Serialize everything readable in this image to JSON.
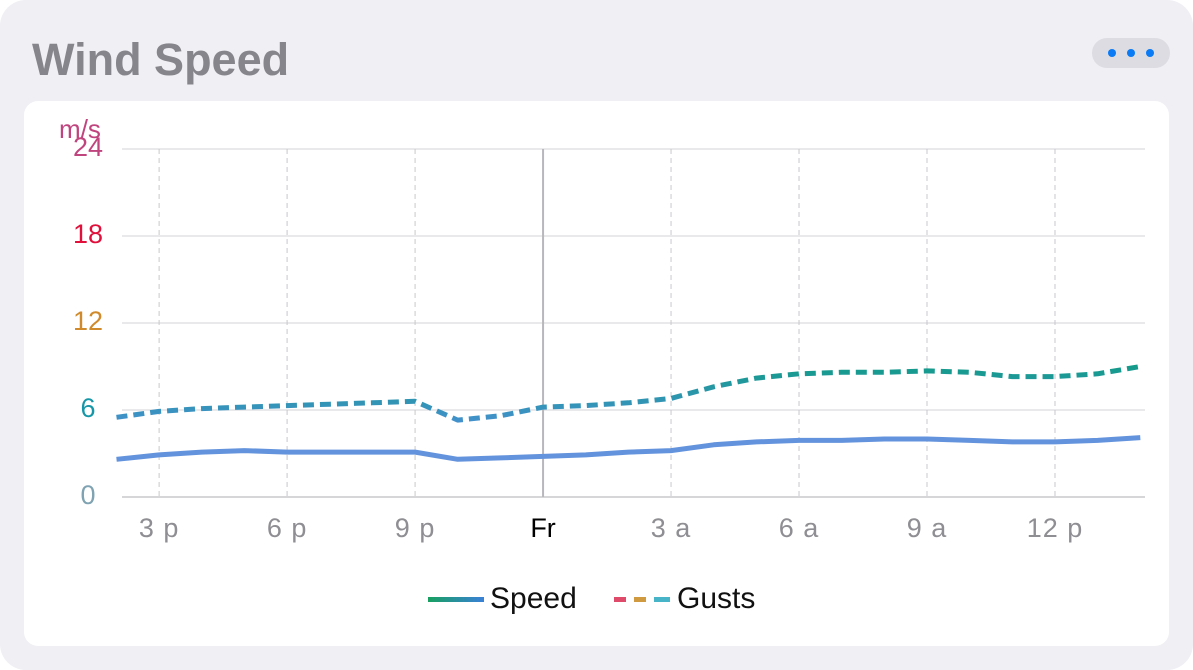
{
  "chart_data": {
    "type": "line",
    "title": "Wind Speed",
    "y_label": "m/s",
    "x": [
      14,
      15,
      16,
      17,
      18,
      19,
      20,
      21,
      22,
      23,
      24,
      25,
      26,
      27,
      28,
      29,
      30,
      31,
      32,
      33,
      34,
      35,
      36,
      37,
      38
    ],
    "series": [
      {
        "name": "Speed",
        "color": "#6393dc",
        "dashed": false,
        "values": [
          2.6,
          2.9,
          3.1,
          3.2,
          3.1,
          3.1,
          3.1,
          3.1,
          2.6,
          2.7,
          2.8,
          2.9,
          3.1,
          3.2,
          3.6,
          3.8,
          3.9,
          3.9,
          4.0,
          4.0,
          3.9,
          3.8,
          3.8,
          3.9,
          4.1
        ]
      },
      {
        "name": "Gusts",
        "color": "#16998f",
        "dashed": true,
        "values": [
          5.5,
          5.9,
          6.1,
          6.2,
          6.3,
          6.4,
          6.5,
          6.6,
          5.3,
          5.6,
          6.2,
          6.3,
          6.5,
          6.8,
          7.6,
          8.2,
          8.5,
          8.6,
          8.6,
          8.7,
          8.6,
          8.3,
          8.3,
          8.5,
          9.0
        ]
      }
    ],
    "xlim": [
      14.13,
      38.11
    ],
    "xticks": [
      {
        "value": 15,
        "label": "3 p"
      },
      {
        "value": 18,
        "label": "6 p"
      },
      {
        "value": 21,
        "label": "9 p"
      },
      {
        "value": 24,
        "label": "Fr"
      },
      {
        "value": 27,
        "label": "3 a"
      },
      {
        "value": 30,
        "label": "6 a"
      },
      {
        "value": 33,
        "label": "9 a"
      },
      {
        "value": 36,
        "label": "12 p"
      }
    ],
    "ylim": [
      0,
      24
    ],
    "yticks": [
      0,
      6,
      12,
      18,
      24
    ],
    "ytick_colors": [
      "#7fa3b2",
      "#1597a8",
      "#d08a2c",
      "#e0103a",
      "#c0447e"
    ],
    "day_divider_tick": 3,
    "grid": true,
    "legend": "bottom"
  }
}
